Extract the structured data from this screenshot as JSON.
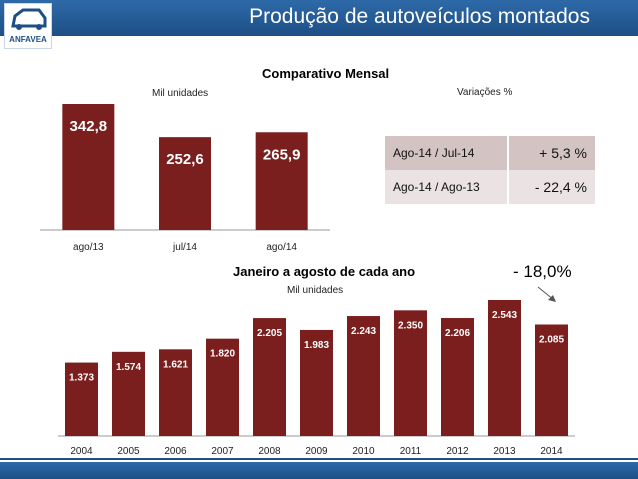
{
  "header": {
    "title": "Produção de autoveículos montados",
    "logo_text": "ANFAVEA"
  },
  "monthly": {
    "title": "Comparativo Mensal",
    "unit_label": "Mil unidades",
    "variations_label": "Variações %",
    "variations": [
      {
        "label": "Ago-14 / Jul-14",
        "value": "+ 5,3 %"
      },
      {
        "label": "Ago-14 / Ago-13",
        "value": "- 22,4 %"
      }
    ]
  },
  "yearly": {
    "title": "Janeiro a agosto de cada ano",
    "unit_label": "Mil unidades",
    "delta_label": "- 18,0%"
  },
  "colors": {
    "bar": "#7a1e1e",
    "bar_light": "#9b2e2e",
    "header": "#1d4f86"
  },
  "chart_data": [
    {
      "type": "bar",
      "categories": [
        "ago/13",
        "jul/14",
        "ago/14"
      ],
      "values": [
        342.8,
        252.6,
        265.9
      ],
      "value_labels": [
        "342,8",
        "252,6",
        "265,9"
      ],
      "ylim": [
        0,
        342.8
      ],
      "grid": false
    },
    {
      "type": "bar",
      "categories": [
        "2004",
        "2005",
        "2006",
        "2007",
        "2008",
        "2009",
        "2010",
        "2011",
        "2012",
        "2013",
        "2014"
      ],
      "values": [
        1373,
        1574,
        1621,
        1820,
        2205,
        1983,
        2243,
        2350,
        2206,
        2543,
        2085
      ],
      "value_labels": [
        "1.373",
        "1.574",
        "1.621",
        "1.820",
        "2.205",
        "1.983",
        "2.243",
        "2.350",
        "2.206",
        "2.543",
        "2.085"
      ],
      "ylim": [
        0,
        2543
      ],
      "grid": false
    }
  ]
}
